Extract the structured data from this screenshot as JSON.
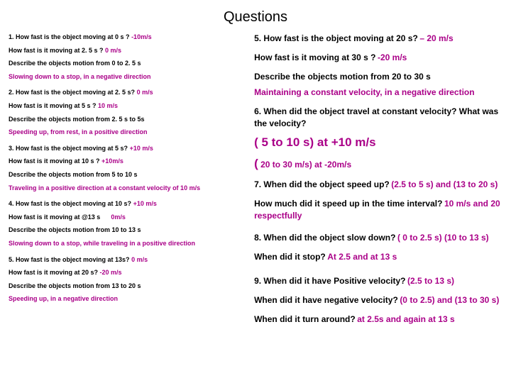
{
  "title": "Questions",
  "colors": {
    "question": "#000000",
    "answer": "#aa0088",
    "background": "#ffffff"
  },
  "left": {
    "q1a": "1. How fast is the object moving at 0 s ?",
    "a1a": "-10m/s",
    "q1b": "How fast is it moving at 2. 5 s ?",
    "a1b": "0 m/s",
    "q1c": "Describe the objects motion from 0 to 2. 5 s",
    "a1c": "Slowing down to a stop, in a negative direction",
    "q2a": "2. How fast is the object moving at 2. 5 s?",
    "a2a": "0 m/s",
    "q2b": "How fast is it moving at 5 s ?",
    "a2b": "10 m/s",
    "q2c": "Describe the objects motion from 2. 5 s to 5s",
    "a2c": "Speeding up, from rest, in a positive direction",
    "q3a": "3. How fast is the object moving at 5 s?",
    "a3a": "+10 m/s",
    "q3b": "How fast is it moving at 10 s ?",
    "a3b": "+10m/s",
    "q3c": "Describe the objects motion from 5 to 10 s",
    "a3c": "Traveling in a positive direction at a constant velocity of 10 m/s",
    "q4a": "4. How fast is the object moving at 10 s?",
    "a4a": "+10 m/s",
    "q4b": "How fast is it moving at @13 s",
    "a4b": "0m/s",
    "q4c": "Describe the objects motion from 10 to 13 s",
    "a4c": "Slowing down to a stop, while traveling in a positive direction",
    "q5a": "5. How fast is the object moving at 13s?",
    "a5a": "0 m/s",
    "q5b": "How fast is it moving at 20 s?",
    "a5b": "-20 m/s",
    "q5c": "Describe the objects motion from 13 to 20 s",
    "a5c": "Speeding up, in a negative direction"
  },
  "right": {
    "q5": "5. How fast is the object moving at 20 s?",
    "a5": "– 20 m/s",
    "q5b": "How fast is it moving at 30 s  ?",
    "a5b": "-20 m/s",
    "q5c": "Describe the objects motion from 20 to 30 s",
    "a5c": "Maintaining a constant velocity, in a negative direction",
    "q6": "6. When did the object travel at constant velocity? What was the velocity?",
    "a6a": "( 5 to 10 s) at +10 m/s",
    "a6b": "( 20 to 30 m/s) at -20m/s",
    "q7": "7. When did the object speed up?",
    "a7": "(2.5 to 5 s) and  (13 to 20 s)",
    "q7b": "How much did it speed up in the time interval?",
    "a7b": "10 m/s and 20 respectfully",
    "q8": "8. When did the object slow down?",
    "a8": "( 0 to 2.5 s) (10 to 13 s)",
    "q8b": "When did it stop?",
    "a8b": "At 2.5 and at 13 s",
    "q9": "9. When did it have Positive velocity?",
    "a9": "(2.5 to 13 s)",
    "q9b": "When did it have negative velocity?",
    "a9b": "(0 to 2.5) and (13 to 30 s)",
    "q9c": "When did it turn around?",
    "a9c": "at 2.5s and again at 13 s"
  }
}
